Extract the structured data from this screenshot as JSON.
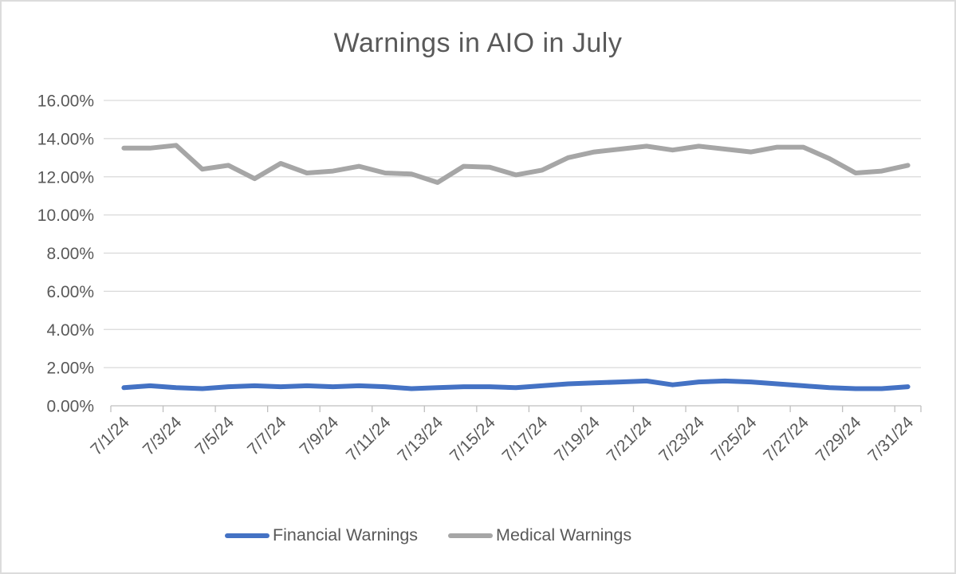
{
  "chart_data": {
    "type": "line",
    "title": "Warnings in AIO in July",
    "categories": [
      "7/1/24",
      "7/2/24",
      "7/3/24",
      "7/4/24",
      "7/5/24",
      "7/6/24",
      "7/7/24",
      "7/8/24",
      "7/9/24",
      "7/10/24",
      "7/11/24",
      "7/12/24",
      "7/13/24",
      "7/14/24",
      "7/15/24",
      "7/16/24",
      "7/17/24",
      "7/18/24",
      "7/19/24",
      "7/20/24",
      "7/21/24",
      "7/22/24",
      "7/23/24",
      "7/24/24",
      "7/25/24",
      "7/26/24",
      "7/27/24",
      "7/28/24",
      "7/29/24",
      "7/30/24",
      "7/31/24"
    ],
    "x_label_interval": 2,
    "series": [
      {
        "name": "Financial Warnings",
        "color": "#4472C4",
        "values": [
          0.95,
          1.05,
          0.95,
          0.9,
          1.0,
          1.05,
          1.0,
          1.05,
          1.0,
          1.05,
          1.0,
          0.9,
          0.95,
          1.0,
          1.0,
          0.95,
          1.05,
          1.15,
          1.2,
          1.25,
          1.3,
          1.1,
          1.25,
          1.3,
          1.25,
          1.15,
          1.05,
          0.95,
          0.9,
          0.9,
          1.0
        ]
      },
      {
        "name": "Medical Warnings",
        "color": "#A6A6A6",
        "values": [
          13.5,
          13.5,
          13.65,
          12.4,
          12.6,
          11.9,
          12.7,
          12.2,
          12.3,
          12.55,
          12.2,
          12.15,
          11.7,
          12.55,
          12.5,
          12.1,
          12.35,
          13.0,
          13.3,
          13.45,
          13.6,
          13.4,
          13.6,
          13.45,
          13.3,
          13.55,
          13.55,
          12.95,
          12.2,
          12.3,
          12.6
        ]
      }
    ],
    "ylim": [
      0,
      16
    ],
    "y_tick_step": 2,
    "y_tick_labels": [
      "0.00%",
      "2.00%",
      "4.00%",
      "6.00%",
      "8.00%",
      "10.00%",
      "12.00%",
      "14.00%",
      "16.00%"
    ],
    "grid": true,
    "legend_position": "bottom"
  },
  "styles": {
    "text_color": "#595959",
    "gridline_color": "#D9D9D9",
    "axis_color": "#BFBFBF",
    "background": "#FFFFFF"
  }
}
